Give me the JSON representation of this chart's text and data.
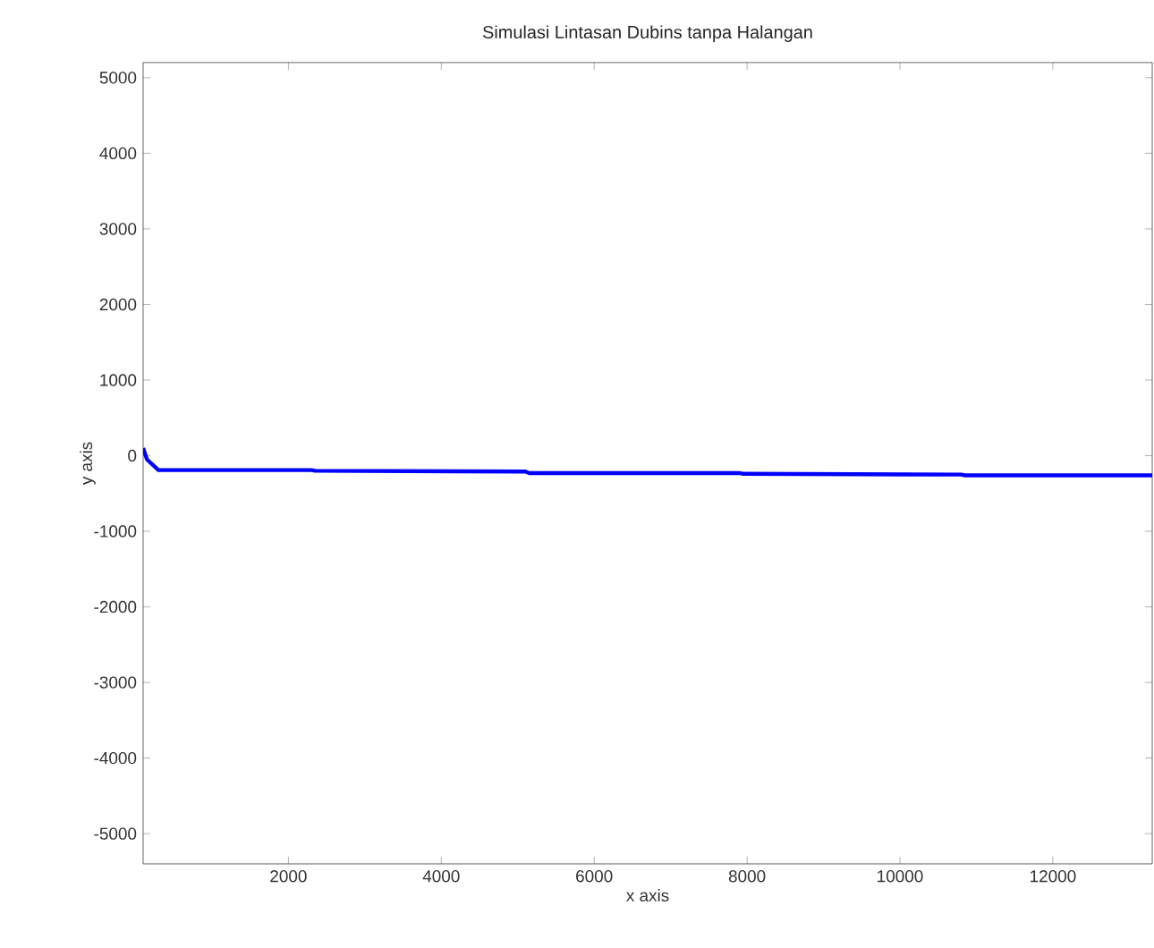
{
  "chart_data": {
    "type": "line",
    "title": "Simulasi Lintasan Dubins tanpa Halangan",
    "xlabel": "x axis",
    "ylabel": "y axis",
    "x": [
      100,
      150,
      300,
      2300,
      2350,
      5100,
      5150,
      7900,
      7950,
      10800,
      10850,
      13300
    ],
    "series": [
      {
        "color": "#0000ff",
        "values": [
          100,
          -50,
          -190,
          -190,
          -200,
          -210,
          -230,
          -230,
          -240,
          -250,
          -260,
          -260
        ]
      }
    ],
    "xlim": [
      100,
      13300
    ],
    "ylim": [
      -5400,
      5200
    ],
    "xticks": [
      2000,
      4000,
      6000,
      8000,
      10000,
      12000
    ],
    "yticks": [
      -5000,
      -4000,
      -3000,
      -2000,
      -1000,
      0,
      1000,
      2000,
      3000,
      4000,
      5000
    ],
    "marker": "none",
    "line_style": "solid"
  }
}
